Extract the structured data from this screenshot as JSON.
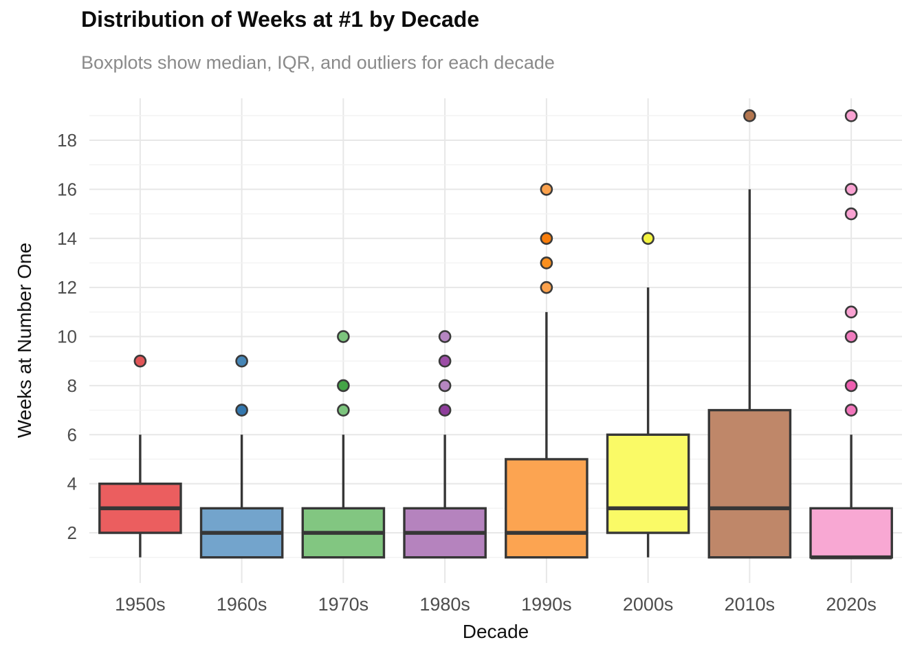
{
  "header": {
    "title": "Distribution of Weeks at #1 by Decade",
    "subtitle": "Boxplots show median, IQR, and outliers for each decade"
  },
  "chart_data": {
    "type": "boxplot",
    "title": "Distribution of Weeks at #1 by Decade",
    "subtitle": "Boxplots show median, IQR, and outliers for each decade",
    "xlabel": "Decade",
    "ylabel": "Weeks at Number One",
    "ylim": [
      -0.045,
      19.71
    ],
    "yticks": [
      2,
      4,
      6,
      8,
      10,
      12,
      14,
      16,
      18
    ],
    "yticks_minor": [
      1,
      3,
      5,
      7,
      9,
      11,
      13,
      15,
      17,
      19
    ],
    "grid": "major-and-minor-horizontal, major-vertical-at-categories",
    "legend": "none",
    "categories": [
      "1950s",
      "1960s",
      "1970s",
      "1980s",
      "1990s",
      "2000s",
      "2010s",
      "2020s"
    ],
    "boxes": [
      {
        "decade": "1950s",
        "fill": "#EB5E5F",
        "whisker_low": 1,
        "q1": 2,
        "median": 3,
        "q3": 4,
        "whisker_high": 6,
        "outliers": [
          {
            "value": 9,
            "color": "#E15557"
          }
        ]
      },
      {
        "decade": "1960s",
        "fill": "#73A4CC",
        "whisker_low": 1,
        "q1": 1,
        "median": 2,
        "q3": 3,
        "whisker_high": 6,
        "outliers": [
          {
            "value": 7,
            "color": "#3377AE"
          },
          {
            "value": 9,
            "color": "#4585B6"
          }
        ]
      },
      {
        "decade": "1970s",
        "fill": "#82C681",
        "whisker_low": 1,
        "q1": 1,
        "median": 2,
        "q3": 3,
        "whisker_high": 6,
        "outliers": [
          {
            "value": 7,
            "color": "#7CC47D"
          },
          {
            "value": 8,
            "color": "#45A447"
          },
          {
            "value": 10,
            "color": "#7CC47D"
          }
        ]
      },
      {
        "decade": "1980s",
        "fill": "#B583BE",
        "whisker_low": 1,
        "q1": 1,
        "median": 2,
        "q3": 3,
        "whisker_high": 6,
        "outliers": [
          {
            "value": 7,
            "color": "#8E3D9B"
          },
          {
            "value": 8,
            "color": "#B586C1"
          },
          {
            "value": 9,
            "color": "#9C4DA6"
          },
          {
            "value": 10,
            "color": "#B586C1"
          }
        ]
      },
      {
        "decade": "1990s",
        "fill": "#FCA451",
        "whisker_low": 1,
        "q1": 1,
        "median": 2,
        "q3": 5,
        "whisker_high": 11,
        "outliers": [
          {
            "value": 12,
            "color": "#FBA14C"
          },
          {
            "value": 13,
            "color": "#F98F1F"
          },
          {
            "value": 14,
            "color": "#F87D0B"
          },
          {
            "value": 16,
            "color": "#FBA14C"
          }
        ]
      },
      {
        "decade": "2000s",
        "fill": "#FAFA66",
        "whisker_low": 1,
        "q1": 2,
        "median": 3,
        "q3": 6,
        "whisker_high": 12,
        "outliers": [
          {
            "value": 14,
            "color": "#F3F340"
          }
        ]
      },
      {
        "decade": "2010s",
        "fill": "#BF8769",
        "whisker_low": 1,
        "q1": 1,
        "median": 3,
        "q3": 7,
        "whisker_high": 16,
        "outliers": [
          {
            "value": 19,
            "color": "#B3764F"
          }
        ]
      },
      {
        "decade": "2020s",
        "fill": "#F8A8D3",
        "whisker_low": 1,
        "q1": 1,
        "median": 1,
        "q3": 3,
        "whisker_high": 6,
        "outliers": [
          {
            "value": 7,
            "color": "#F175BB"
          },
          {
            "value": 8,
            "color": "#EE5FB0"
          },
          {
            "value": 10,
            "color": "#F07BBE"
          },
          {
            "value": 11,
            "color": "#F9A2D2"
          },
          {
            "value": 15,
            "color": "#F9A2D2"
          },
          {
            "value": 16,
            "color": "#F9A2D2"
          },
          {
            "value": 19,
            "color": "#F9A2D2"
          }
        ]
      }
    ],
    "style": {
      "box_border": "#363636",
      "median_color": "#363636",
      "whisker_color": "#363636",
      "outlier_ring": "#3a3a3a",
      "grid_major": "#e7e7e7",
      "grid_minor": "#f2f2f2",
      "tick_label_color": "#4d4d4d",
      "axis_title_color": "#111111",
      "title_color": "#0c0c0c",
      "subtitle_color": "#8a8a8a",
      "background": "#ffffff"
    }
  }
}
